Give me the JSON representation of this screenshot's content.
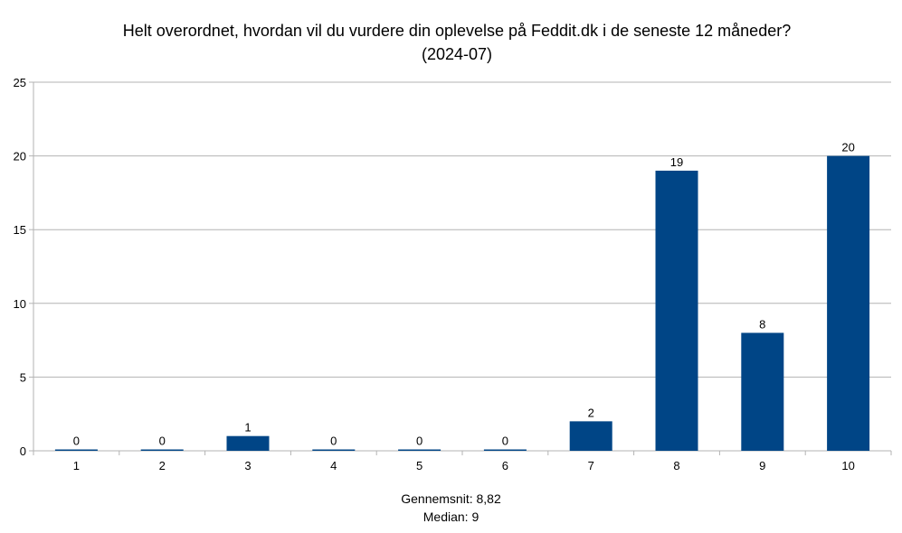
{
  "chart_data": {
    "type": "bar",
    "title": "Helt overordnet, hvordan vil du vurdere din oplevelse på Feddit.dk i de seneste 12 måneder?",
    "subtitle": "(2024-07)",
    "categories": [
      "1",
      "2",
      "3",
      "4",
      "5",
      "6",
      "7",
      "8",
      "9",
      "10"
    ],
    "values": [
      0,
      0,
      1,
      0,
      0,
      0,
      2,
      19,
      8,
      20
    ],
    "ylim": [
      0,
      25
    ],
    "yticks": [
      0,
      5,
      10,
      15,
      20,
      25
    ],
    "xlabel": "",
    "ylabel": "",
    "grid": true,
    "bar_color": "#004586",
    "notes": [
      "Gennemsnit: 8,82",
      "Median: 9"
    ]
  }
}
